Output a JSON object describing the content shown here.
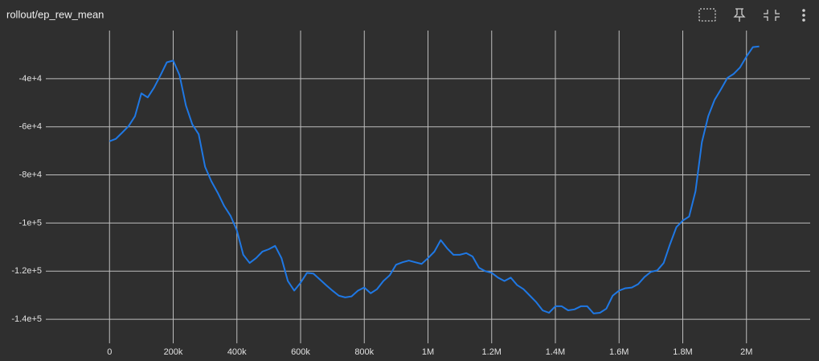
{
  "chart_data": {
    "type": "line",
    "title": "rollout/ep_rew_mean",
    "x": [
      0,
      20000,
      40000,
      60000,
      80000,
      100000,
      120000,
      140000,
      160000,
      180000,
      200000,
      220000,
      240000,
      260000,
      280000,
      300000,
      320000,
      340000,
      360000,
      380000,
      400000,
      420000,
      440000,
      460000,
      480000,
      500000,
      520000,
      540000,
      560000,
      580000,
      600000,
      620000,
      640000,
      660000,
      680000,
      700000,
      720000,
      740000,
      760000,
      780000,
      800000,
      820000,
      840000,
      860000,
      880000,
      900000,
      920000,
      940000,
      960000,
      980000,
      1000000,
      1020000,
      1040000,
      1060000,
      1080000,
      1100000,
      1120000,
      1140000,
      1160000,
      1180000,
      1200000,
      1220000,
      1240000,
      1260000,
      1280000,
      1300000,
      1320000,
      1340000,
      1360000,
      1380000,
      1400000,
      1420000,
      1440000,
      1460000,
      1480000,
      1500000,
      1520000,
      1540000,
      1560000,
      1580000,
      1600000,
      1620000,
      1640000,
      1660000,
      1680000,
      1700000,
      1720000,
      1740000,
      1760000,
      1780000,
      1800000,
      1820000,
      1840000,
      1860000,
      1880000,
      1900000,
      1920000,
      1940000,
      1960000,
      1980000,
      2000000,
      2020000,
      2040000
    ],
    "series": [
      {
        "name": "ep_rew_mean",
        "color": "#1f78e4",
        "values": [
          -66000,
          -65000,
          -62400,
          -59700,
          -55600,
          -46100,
          -47800,
          -43700,
          -38600,
          -33200,
          -32500,
          -38600,
          -51200,
          -59000,
          -63100,
          -76600,
          -82700,
          -87500,
          -92900,
          -97000,
          -103100,
          -113200,
          -116600,
          -114600,
          -111900,
          -110900,
          -109500,
          -114600,
          -124100,
          -128100,
          -124800,
          -120700,
          -121000,
          -123400,
          -125800,
          -128100,
          -130200,
          -130900,
          -130500,
          -128100,
          -126800,
          -129200,
          -127500,
          -124100,
          -121700,
          -117300,
          -116300,
          -115600,
          -116300,
          -117000,
          -114600,
          -111900,
          -107100,
          -110500,
          -113200,
          -113200,
          -112500,
          -113900,
          -118600,
          -120000,
          -120700,
          -122700,
          -124100,
          -122700,
          -125800,
          -127500,
          -130200,
          -132900,
          -136300,
          -137300,
          -134600,
          -134600,
          -136300,
          -135900,
          -134600,
          -134600,
          -137600,
          -137300,
          -135600,
          -130200,
          -128100,
          -127100,
          -126800,
          -125400,
          -122400,
          -120300,
          -119700,
          -116600,
          -108800,
          -101700,
          -99000,
          -97300,
          -86800,
          -66400,
          -55600,
          -48800,
          -44400,
          -39700,
          -38000,
          -35300,
          -30800,
          -26900,
          -26600
        ]
      }
    ],
    "xlim": [
      -200000,
      2200000
    ],
    "ylim": [
      -150000,
      -20000
    ],
    "xticks": [
      0,
      {
        "value": 200000,
        "label": "200k"
      },
      {
        "value": 400000,
        "label": "400k"
      },
      {
        "value": 600000,
        "label": "600k"
      },
      {
        "value": 800000,
        "label": "800k"
      },
      {
        "value": 1000000,
        "label": "1M"
      },
      {
        "value": 1200000,
        "label": "1.2M"
      },
      {
        "value": 1400000,
        "label": "1.4M"
      },
      {
        "value": 1600000,
        "label": "1.6M"
      },
      {
        "value": 1800000,
        "label": "1.8M"
      },
      {
        "value": 2000000,
        "label": "2M"
      }
    ],
    "yticks": [
      {
        "value": -40000,
        "label": "-4e+4"
      },
      {
        "value": -60000,
        "label": "-6e+4"
      },
      {
        "value": -80000,
        "label": "-8e+4"
      },
      {
        "value": -100000,
        "label": "-1e+5"
      },
      {
        "value": -120000,
        "label": "-1.2e+5"
      },
      {
        "value": -140000,
        "label": "-1.4e+5"
      }
    ],
    "grid": true
  }
}
